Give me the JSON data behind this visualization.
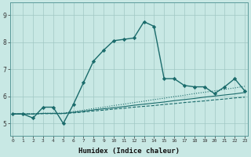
{
  "title": "",
  "xlabel": "Humidex (Indice chaleur)",
  "ylabel": "",
  "background_color": "#c8e8e4",
  "line_color": "#1a6b6b",
  "grid_color": "#a0c8c4",
  "x_ticks": [
    0,
    1,
    2,
    3,
    4,
    5,
    6,
    7,
    8,
    9,
    10,
    11,
    12,
    13,
    14,
    15,
    16,
    17,
    18,
    19,
    20,
    21,
    22,
    23
  ],
  "y_ticks": [
    5,
    6,
    7,
    8,
    9
  ],
  "xlim": [
    -0.3,
    23.3
  ],
  "ylim": [
    4.55,
    9.45
  ],
  "series": [
    {
      "x": [
        0,
        1,
        2,
        3,
        4,
        5,
        6,
        7,
        8,
        9,
        10,
        11,
        12,
        13,
        14,
        15,
        16,
        17,
        18,
        19,
        20,
        21,
        22,
        23
      ],
      "y": [
        5.35,
        5.35,
        5.2,
        5.6,
        5.6,
        5.0,
        5.7,
        6.5,
        7.3,
        7.7,
        8.05,
        8.1,
        8.15,
        8.75,
        8.58,
        6.65,
        6.65,
        6.4,
        6.35,
        6.35,
        6.1,
        6.35,
        6.65,
        6.2
      ],
      "color": "#1a6b6b",
      "linewidth": 1.0,
      "marker": "D",
      "markersize": 2.2,
      "linestyle": "-"
    },
    {
      "x": [
        0,
        1,
        2,
        3,
        4,
        5,
        6,
        7,
        8,
        9,
        10,
        11,
        12,
        13,
        14,
        15,
        16,
        17,
        18,
        19,
        20,
        21,
        22,
        23
      ],
      "y": [
        5.35,
        5.35,
        5.35,
        5.38,
        5.38,
        5.38,
        5.44,
        5.49,
        5.55,
        5.6,
        5.66,
        5.71,
        5.77,
        5.82,
        5.88,
        5.93,
        5.99,
        6.04,
        6.1,
        6.15,
        6.2,
        6.26,
        6.31,
        6.37
      ],
      "color": "#1a6b6b",
      "linewidth": 0.8,
      "marker": null,
      "markersize": 0,
      "linestyle": ":"
    },
    {
      "x": [
        0,
        1,
        2,
        3,
        4,
        5,
        6,
        7,
        8,
        9,
        10,
        11,
        12,
        13,
        14,
        15,
        16,
        17,
        18,
        19,
        20,
        21,
        22,
        23
      ],
      "y": [
        5.35,
        5.35,
        5.35,
        5.37,
        5.37,
        5.37,
        5.41,
        5.45,
        5.5,
        5.54,
        5.58,
        5.62,
        5.67,
        5.71,
        5.75,
        5.79,
        5.84,
        5.88,
        5.92,
        5.97,
        6.01,
        6.05,
        6.09,
        6.14
      ],
      "color": "#1a6b6b",
      "linewidth": 0.8,
      "marker": null,
      "markersize": 0,
      "linestyle": "-"
    },
    {
      "x": [
        0,
        1,
        2,
        3,
        4,
        5,
        6,
        7,
        8,
        9,
        10,
        11,
        12,
        13,
        14,
        15,
        16,
        17,
        18,
        19,
        20,
        21,
        22,
        23
      ],
      "y": [
        5.35,
        5.35,
        5.35,
        5.36,
        5.36,
        5.36,
        5.39,
        5.42,
        5.46,
        5.49,
        5.53,
        5.56,
        5.6,
        5.63,
        5.66,
        5.7,
        5.73,
        5.77,
        5.8,
        5.83,
        5.87,
        5.9,
        5.94,
        5.97
      ],
      "color": "#1a6b6b",
      "linewidth": 0.8,
      "marker": null,
      "markersize": 0,
      "linestyle": "--"
    }
  ]
}
